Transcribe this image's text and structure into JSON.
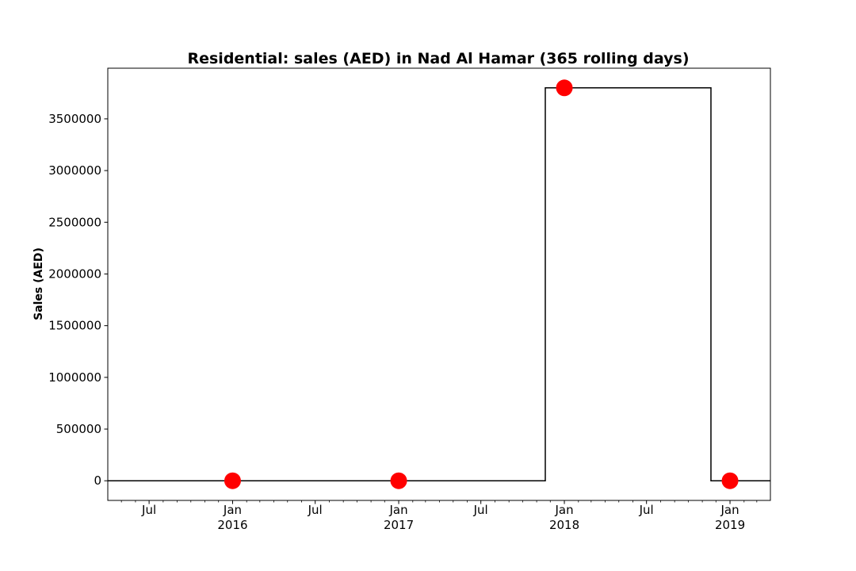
{
  "chart_data": {
    "type": "line",
    "title": "Residential: sales (AED) in Nad Al Hamar (365 rolling days)",
    "xlabel": "",
    "ylabel": "Sales (AED)",
    "ylim": [
      -190000,
      3990000
    ],
    "xlim": [
      "2015-04-01",
      "2019-03-31"
    ],
    "y_ticks": [
      0,
      500000,
      1000000,
      1500000,
      2000000,
      2500000,
      3000000,
      3500000
    ],
    "x_ticks": [
      {
        "date": "2015-07-01",
        "label": "Jul",
        "year": ""
      },
      {
        "date": "2016-01-01",
        "label": "Jan",
        "year": "2016"
      },
      {
        "date": "2016-07-01",
        "label": "Jul",
        "year": ""
      },
      {
        "date": "2017-01-01",
        "label": "Jan",
        "year": "2017"
      },
      {
        "date": "2017-07-01",
        "label": "Jul",
        "year": ""
      },
      {
        "date": "2018-01-01",
        "label": "Jan",
        "year": "2018"
      },
      {
        "date": "2018-07-01",
        "label": "Jul",
        "year": ""
      },
      {
        "date": "2019-01-01",
        "label": "Jan",
        "year": "2019"
      }
    ],
    "series": [
      {
        "style": "step",
        "color": "#000000",
        "points": [
          {
            "x": "2015-04-01",
            "y": 0
          },
          {
            "x": "2017-11-20",
            "y": 0
          },
          {
            "x": "2017-11-20",
            "y": 3800000
          },
          {
            "x": "2018-11-20",
            "y": 3800000
          },
          {
            "x": "2018-11-20",
            "y": 0
          },
          {
            "x": "2019-03-31",
            "y": 0
          }
        ]
      },
      {
        "style": "markers",
        "color": "#ff0000",
        "points": [
          {
            "x": "2016-01-01",
            "y": 0
          },
          {
            "x": "2017-01-01",
            "y": 0
          },
          {
            "x": "2018-01-01",
            "y": 3800000
          },
          {
            "x": "2019-01-01",
            "y": 0
          }
        ]
      }
    ],
    "grid": false,
    "legend": "none"
  }
}
